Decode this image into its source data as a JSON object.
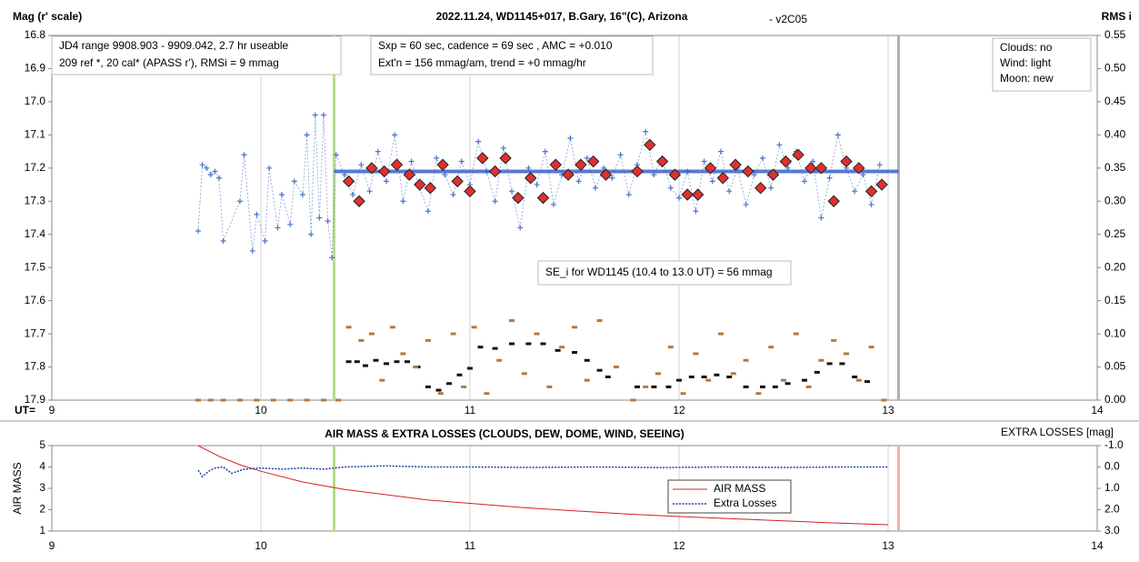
{
  "chart_data": [
    {
      "type": "scatter",
      "title": "2022.11.24, WD1145+017, B.Gary, 16\"(C), Arizona",
      "subtitle": "- v2C05",
      "y_label": "Mag (r' scale)",
      "y2_label": "RMS i",
      "x_label": "UT=",
      "xlim": [
        9,
        14
      ],
      "xticks": [
        9,
        10,
        11,
        12,
        13,
        14
      ],
      "ylim": [
        16.8,
        17.9
      ],
      "y_inverted": true,
      "yticks": [
        16.8,
        16.9,
        {
          "value": 17,
          "label": "17.0"
        },
        17.1,
        17.2,
        17.3,
        17.4,
        17.5,
        17.6,
        17.7,
        17.8,
        17.9
      ],
      "y2lim": [
        0,
        0.55
      ],
      "y2ticks": [
        {
          "value": 0,
          "label": "0.00"
        },
        0.05,
        {
          "value": 0.1,
          "label": "0.10"
        },
        0.15,
        {
          "value": 0.2,
          "label": "0.20"
        },
        0.25,
        {
          "value": 0.3,
          "label": "0.30"
        },
        0.35,
        {
          "value": 0.4,
          "label": "0.40"
        },
        0.45,
        {
          "value": 0.5,
          "label": "0.50"
        },
        0.55
      ],
      "grid": "x",
      "annotations": [
        {
          "lines": [
            "JD4 range 9908.903 - 9909.042, 2.7 hr useable",
            "209 ref *, 20 cal*  (APASS r'), RMSi = 9 mmag"
          ]
        },
        {
          "lines": [
            "Sxp = 60 sec, cadence = 69 sec , AMC = +0.010",
            "Ext'n = 156 mmag/am, trend = +0 mmag/hr"
          ]
        },
        {
          "lines": [
            "Clouds: no",
            "Wind:  light",
            "Moon:  new"
          ]
        },
        {
          "lines": [
            "SE_i for WD1145 (10.4 to 13.0 UT) = 56 mmag"
          ]
        }
      ],
      "vlines": [
        {
          "x": 10.35,
          "color": "#b5dc8c"
        },
        {
          "x": 13.05,
          "color": "#b0b0b0"
        }
      ],
      "series": [
        {
          "marker": "plus",
          "color": "#4a74c9",
          "x": [
            9.7,
            9.72,
            9.74,
            9.76,
            9.78,
            9.8,
            9.82,
            9.9,
            9.92,
            9.96,
            9.98,
            10.02,
            10.04,
            10.08,
            10.1,
            10.14,
            10.16,
            10.2,
            10.22,
            10.24,
            10.26,
            10.28,
            10.3,
            10.32,
            10.34,
            10.36,
            10.4,
            10.44,
            10.48,
            10.52,
            10.56,
            10.6,
            10.64,
            10.68,
            10.72,
            10.76,
            10.8,
            10.84,
            10.88,
            10.92,
            10.96,
            11.0,
            11.04,
            11.08,
            11.12,
            11.16,
            11.2,
            11.24,
            11.28,
            11.32,
            11.36,
            11.4,
            11.44,
            11.48,
            11.52,
            11.56,
            11.6,
            11.64,
            11.68,
            11.72,
            11.76,
            11.8,
            11.84,
            11.88,
            11.92,
            11.96,
            12.0,
            12.04,
            12.08,
            12.12,
            12.16,
            12.2,
            12.24,
            12.28,
            12.32,
            12.36,
            12.4,
            12.44,
            12.48,
            12.52,
            12.56,
            12.6,
            12.64,
            12.68,
            12.72,
            12.76,
            12.8,
            12.84,
            12.88,
            12.92,
            12.96
          ],
          "values": [
            17.39,
            17.19,
            17.2,
            17.22,
            17.21,
            17.23,
            17.42,
            17.3,
            17.16,
            17.45,
            17.34,
            17.42,
            17.2,
            17.38,
            17.28,
            17.37,
            17.24,
            17.28,
            17.1,
            17.4,
            17.04,
            17.35,
            17.04,
            17.36,
            17.47,
            17.16,
            17.22,
            17.28,
            17.19,
            17.27,
            17.15,
            17.24,
            17.1,
            17.3,
            17.18,
            17.26,
            17.33,
            17.17,
            17.22,
            17.28,
            17.18,
            17.25,
            17.12,
            17.21,
            17.3,
            17.14,
            17.27,
            17.38,
            17.2,
            17.25,
            17.15,
            17.31,
            17.22,
            17.11,
            17.24,
            17.17,
            17.26,
            17.2,
            17.23,
            17.16,
            17.28,
            17.19,
            17.09,
            17.22,
            17.17,
            17.26,
            17.29,
            17.21,
            17.33,
            17.18,
            17.24,
            17.15,
            17.27,
            17.2,
            17.31,
            17.22,
            17.17,
            17.26,
            17.13,
            17.2,
            17.15,
            17.24,
            17.18,
            17.35,
            17.23,
            17.1,
            17.2,
            17.27,
            17.22,
            17.31,
            17.19
          ]
        },
        {
          "marker": "line",
          "color": "#3a62c8",
          "x": [
            10.35,
            13.05
          ],
          "values": [
            17.21,
            17.21
          ]
        },
        {
          "marker": "diamond",
          "color": "#e03030",
          "x": [
            10.42,
            10.47,
            10.53,
            10.59,
            10.65,
            10.71,
            10.76,
            10.81,
            10.87,
            10.94,
            11.0,
            11.06,
            11.12,
            11.17,
            11.23,
            11.29,
            11.35,
            11.41,
            11.47,
            11.53,
            11.59,
            11.65,
            11.8,
            11.86,
            11.92,
            11.98,
            12.04,
            12.09,
            12.15,
            12.21,
            12.27,
            12.33,
            12.39,
            12.45,
            12.51,
            12.57,
            12.63,
            12.68,
            12.74,
            12.8,
            12.86,
            12.92,
            12.97
          ],
          "values": [
            17.24,
            17.3,
            17.2,
            17.21,
            17.19,
            17.22,
            17.25,
            17.26,
            17.19,
            17.24,
            17.27,
            17.17,
            17.21,
            17.17,
            17.29,
            17.23,
            17.29,
            17.19,
            17.22,
            17.19,
            17.18,
            17.22,
            17.21,
            17.13,
            17.18,
            17.22,
            17.28,
            17.28,
            17.2,
            17.23,
            17.19,
            17.21,
            17.26,
            17.22,
            17.18,
            17.16,
            17.2,
            17.2,
            17.3,
            17.18,
            17.2,
            17.27,
            17.25
          ]
        },
        {
          "marker": "dash",
          "color": "#111111",
          "axis": "y2",
          "x": [
            10.42,
            10.46,
            10.5,
            10.55,
            10.6,
            10.65,
            10.7,
            10.75,
            10.8,
            10.85,
            10.9,
            10.95,
            11.0,
            11.05,
            11.12,
            11.2,
            11.28,
            11.35,
            11.42,
            11.5,
            11.56,
            11.62,
            11.66,
            11.8,
            11.88,
            11.95,
            12.0,
            12.06,
            12.12,
            12.18,
            12.24,
            12.32,
            12.4,
            12.46,
            12.52,
            12.6,
            12.66,
            12.72,
            12.78,
            12.84,
            12.9
          ],
          "values": [
            0.058,
            0.058,
            0.052,
            0.06,
            0.055,
            0.058,
            0.058,
            0.05,
            0.02,
            0.015,
            0.025,
            0.038,
            0.048,
            0.08,
            0.078,
            0.085,
            0.085,
            0.085,
            0.075,
            0.072,
            0.06,
            0.045,
            0.035,
            0.02,
            0.02,
            0.02,
            0.03,
            0.035,
            0.035,
            0.038,
            0.035,
            0.02,
            0.02,
            0.02,
            0.025,
            0.03,
            0.042,
            0.055,
            0.055,
            0.035,
            0.028
          ]
        },
        {
          "marker": "dash",
          "color": "#b5793f",
          "axis": "y2",
          "x": [
            9.7,
            9.76,
            9.82,
            9.9,
            9.98,
            10.06,
            10.14,
            10.22,
            10.3,
            10.37,
            10.42,
            10.48,
            10.53,
            10.58,
            10.63,
            10.68,
            10.74,
            10.8,
            10.86,
            10.92,
            10.97,
            11.02,
            11.08,
            11.14,
            11.2,
            11.26,
            11.32,
            11.38,
            11.44,
            11.5,
            11.56,
            11.62,
            11.7,
            11.78,
            11.84,
            11.9,
            11.96,
            12.02,
            12.08,
            12.14,
            12.2,
            12.26,
            12.32,
            12.38,
            12.44,
            12.5,
            12.56,
            12.62,
            12.68,
            12.74,
            12.8,
            12.86,
            12.92,
            12.98
          ],
          "values": [
            0,
            0,
            0,
            0,
            0,
            0,
            0,
            0,
            0,
            0,
            0.11,
            0.09,
            0.1,
            0.03,
            0.11,
            0.07,
            0.05,
            0.09,
            0.01,
            0.1,
            0.02,
            0.11,
            0.01,
            0.06,
            0.12,
            0.04,
            0.1,
            0.02,
            0.08,
            0.11,
            0.03,
            0.12,
            0.05,
            0.0,
            0.02,
            0.04,
            0.08,
            0.01,
            0.07,
            0.03,
            0.1,
            0.04,
            0.06,
            0.01,
            0.08,
            0.03,
            0.1,
            0.02,
            0.06,
            0.09,
            0.07,
            0.03,
            0.08,
            0.0
          ]
        }
      ]
    },
    {
      "type": "line",
      "title": "AIR MASS & EXTRA LOSSES (CLOUDS, DEW, DOME, WIND, SEEING)",
      "y_label": "AIR MASS",
      "y2_label": "EXTRA LOSSES [mag]",
      "xlim": [
        9,
        14
      ],
      "xticks": [
        9,
        10,
        11,
        12,
        13,
        14
      ],
      "ylim": [
        1,
        5
      ],
      "yticks": [
        1,
        2,
        3,
        4,
        5
      ],
      "y2lim": [
        -1,
        3
      ],
      "y2_inverted": true,
      "y2ticks": [
        {
          "value": -1,
          "label": "-1.0"
        },
        {
          "value": 0,
          "label": "0.0"
        },
        {
          "value": 1,
          "label": "1.0"
        },
        {
          "value": 2,
          "label": "2.0"
        },
        {
          "value": 3,
          "label": "3.0"
        }
      ],
      "grid": "x",
      "vlines": [
        {
          "x": 10.35,
          "color": "#b5dc8c"
        },
        {
          "x": 13.05,
          "color": "#f2b0b0"
        }
      ],
      "series": [
        {
          "name": "AIR MASS",
          "color": "#d42020",
          "dash": false,
          "x": [
            9.7,
            9.8,
            9.9,
            10.0,
            10.2,
            10.4,
            10.6,
            10.8,
            11.0,
            11.25,
            11.5,
            11.75,
            12.0,
            12.25,
            12.5,
            12.75,
            13.0
          ],
          "values": [
            5.0,
            4.5,
            4.1,
            3.8,
            3.3,
            2.95,
            2.7,
            2.45,
            2.3,
            2.1,
            1.95,
            1.8,
            1.68,
            1.58,
            1.48,
            1.38,
            1.3
          ]
        },
        {
          "name": "Extra Losses",
          "color": "#1f3fa0",
          "dash": true,
          "axis": "y2",
          "x": [
            9.7,
            9.72,
            9.75,
            9.78,
            9.82,
            9.86,
            9.92,
            10.0,
            10.1,
            10.2,
            10.3,
            10.4,
            10.6,
            10.8,
            11.0,
            11.3,
            11.6,
            11.9,
            12.2,
            12.5,
            12.8,
            13.0
          ],
          "values": [
            0.15,
            0.45,
            0.2,
            0.05,
            0.0,
            0.3,
            0.1,
            0.05,
            0.1,
            0.05,
            0.1,
            0.0,
            -0.05,
            0.0,
            0.0,
            0.02,
            0.0,
            0.03,
            0.0,
            0.02,
            0.0,
            0.0
          ]
        }
      ]
    }
  ]
}
